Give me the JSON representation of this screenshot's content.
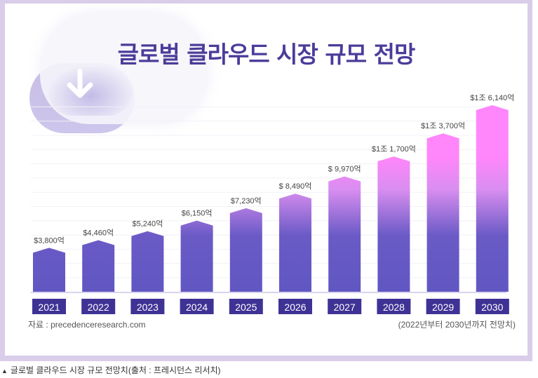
{
  "chart_data": {
    "type": "bar",
    "title": "글로벌 클라우드 시장 규모 전망",
    "unit": "억 달러",
    "categories": [
      "2021",
      "2022",
      "2023",
      "2024",
      "2025",
      "2026",
      "2027",
      "2028",
      "2029",
      "2030"
    ],
    "values": [
      3800,
      4460,
      5240,
      6150,
      7230,
      8490,
      9970,
      11700,
      13700,
      16140
    ],
    "value_labels": [
      "$3,800억",
      "$4,460억",
      "$5,240억",
      "$6,150억",
      "$7,230억",
      "$ 8,490억",
      "$ 9,970억",
      "$1조 1,700억",
      "$1조 3,700억",
      "$1조 6,140억"
    ],
    "xlabel": "",
    "ylabel": "",
    "ylim": [
      0,
      16140
    ],
    "grid": true,
    "legend": "none"
  },
  "footer": {
    "source": "자료 : precedenceresearch.com",
    "note": "(2022년부터 2030년까지 전망치)"
  },
  "caption": {
    "marker": "▲",
    "text": "글로벌 클라우드 시장 규모 전망치(출처 : 프레시던스 리서치)"
  },
  "colors": {
    "bar_bottom": "#6157c2",
    "bar_top": "#ff86fb",
    "year_box": "#3f3295",
    "title": "#4b3c9a",
    "frame": "#d9cdea"
  },
  "icons": {
    "cloud": "cloud-download-icon"
  }
}
